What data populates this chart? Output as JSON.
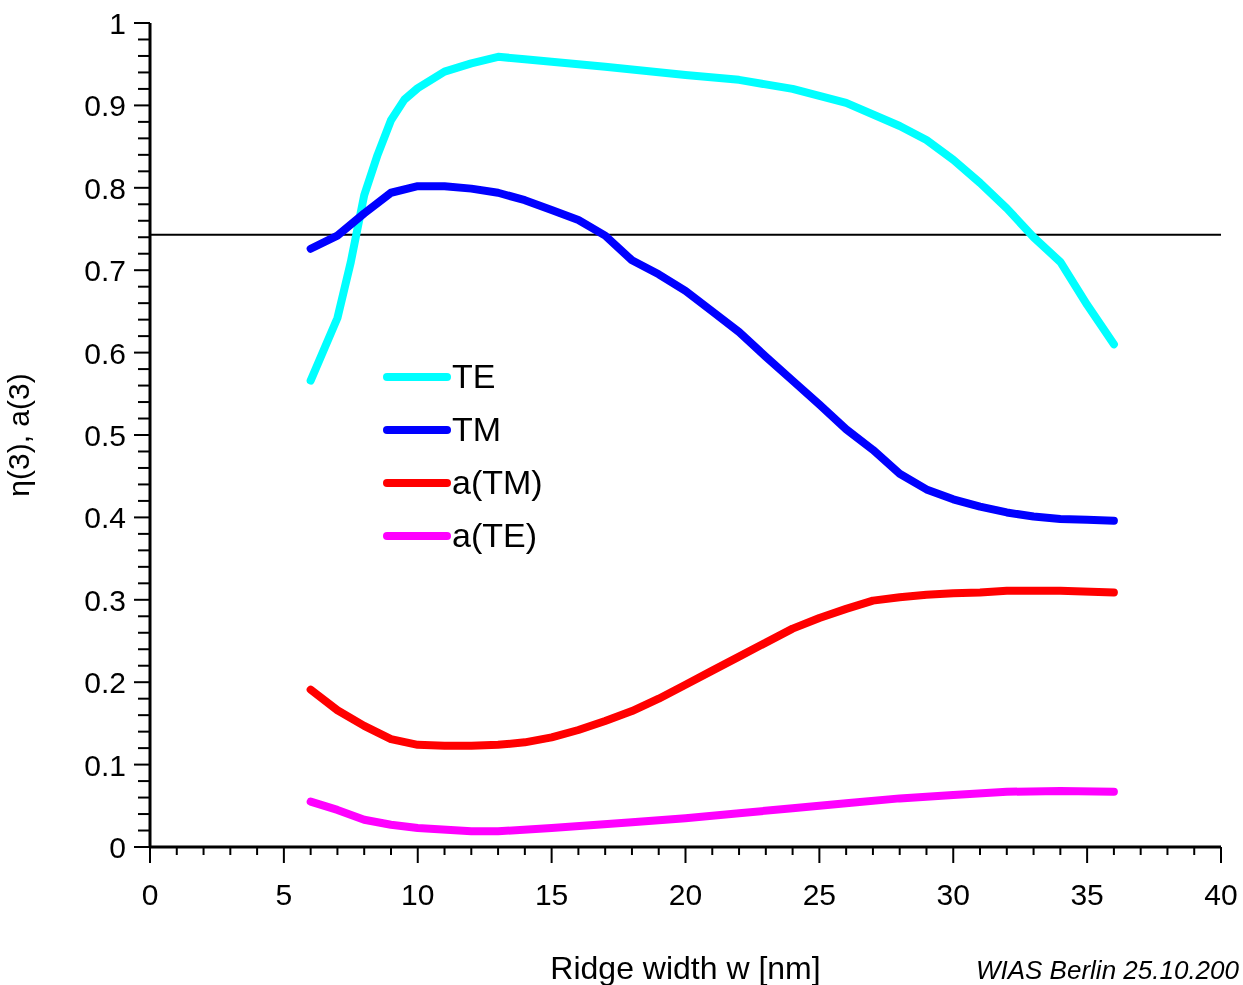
{
  "chart_data": {
    "type": "line",
    "xlabel": "Ridge width w [nm]",
    "ylabel": "η(3), a(3)",
    "annotations": [
      "WIAS Berlin 25.10.200"
    ],
    "xlim": [
      0,
      40
    ],
    "xticks": [
      0,
      {
        "value": 1,
        "label": null
      },
      {
        "value": 2,
        "label": null
      },
      {
        "value": 3,
        "label": null
      },
      {
        "value": 4,
        "label": null
      },
      5,
      {
        "value": 6,
        "label": null
      },
      {
        "value": 7,
        "label": null
      },
      {
        "value": 8,
        "label": null
      },
      {
        "value": 9,
        "label": null
      },
      10,
      {
        "value": 11,
        "label": null
      },
      {
        "value": 12,
        "label": null
      },
      {
        "value": 13,
        "label": null
      },
      {
        "value": 14,
        "label": null
      },
      15,
      {
        "value": 16,
        "label": null
      },
      {
        "value": 17,
        "label": null
      },
      {
        "value": 18,
        "label": null
      },
      {
        "value": 19,
        "label": null
      },
      20,
      {
        "value": 21,
        "label": null
      },
      {
        "value": 22,
        "label": null
      },
      {
        "value": 23,
        "label": null
      },
      {
        "value": 24,
        "label": null
      },
      25,
      {
        "value": 26,
        "label": null
      },
      {
        "value": 27,
        "label": null
      },
      {
        "value": 28,
        "label": null
      },
      {
        "value": 29,
        "label": null
      },
      30,
      {
        "value": 31,
        "label": null
      },
      {
        "value": 32,
        "label": null
      },
      {
        "value": 33,
        "label": null
      },
      {
        "value": 34,
        "label": null
      },
      35,
      {
        "value": 36,
        "label": null
      },
      {
        "value": 37,
        "label": null
      },
      {
        "value": 38,
        "label": null
      },
      {
        "value": 39,
        "label": null
      },
      40
    ],
    "ylim": [
      0,
      1
    ],
    "yticks": [
      0,
      {
        "value": 0.02,
        "label": null
      },
      {
        "value": 0.04,
        "label": null
      },
      {
        "value": 0.06,
        "label": null
      },
      {
        "value": 0.08,
        "label": null
      },
      0.1,
      {
        "value": 0.12,
        "label": null
      },
      {
        "value": 0.14,
        "label": null
      },
      {
        "value": 0.16,
        "label": null
      },
      {
        "value": 0.18,
        "label": null
      },
      0.2,
      {
        "value": 0.22,
        "label": null
      },
      {
        "value": 0.24,
        "label": null
      },
      {
        "value": 0.26,
        "label": null
      },
      {
        "value": 0.28,
        "label": null
      },
      0.3,
      {
        "value": 0.32,
        "label": null
      },
      {
        "value": 0.34,
        "label": null
      },
      {
        "value": 0.36,
        "label": null
      },
      {
        "value": 0.38,
        "label": null
      },
      0.4,
      {
        "value": 0.42,
        "label": null
      },
      {
        "value": 0.44,
        "label": null
      },
      {
        "value": 0.46,
        "label": null
      },
      {
        "value": 0.48,
        "label": null
      },
      0.5,
      {
        "value": 0.52,
        "label": null
      },
      {
        "value": 0.54,
        "label": null
      },
      {
        "value": 0.56,
        "label": null
      },
      {
        "value": 0.58,
        "label": null
      },
      0.6,
      {
        "value": 0.62,
        "label": null
      },
      {
        "value": 0.64,
        "label": null
      },
      {
        "value": 0.66,
        "label": null
      },
      {
        "value": 0.68,
        "label": null
      },
      0.7,
      {
        "value": 0.72,
        "label": null
      },
      {
        "value": 0.74,
        "label": null
      },
      {
        "value": 0.76,
        "label": null
      },
      {
        "value": 0.78,
        "label": null
      },
      0.8,
      {
        "value": 0.82,
        "label": null
      },
      {
        "value": 0.84,
        "label": null
      },
      {
        "value": 0.86,
        "label": null
      },
      {
        "value": 0.88,
        "label": null
      },
      0.9,
      {
        "value": 0.92,
        "label": null
      },
      {
        "value": 0.94,
        "label": null
      },
      {
        "value": 0.96,
        "label": null
      },
      {
        "value": 0.98,
        "label": null
      },
      1
    ],
    "legend": "left",
    "marker": "none",
    "line_style": "solid",
    "ref_lines": [
      {
        "axis": "y",
        "value": 0.743,
        "color": "#000000"
      }
    ],
    "series": [
      {
        "name": "TE",
        "color": "#00ffff",
        "x": [
          6,
          7,
          7.5,
          8,
          8.5,
          9,
          9.5,
          10,
          11,
          12,
          13,
          14,
          15,
          17,
          20,
          22,
          24,
          26,
          28,
          29,
          30,
          31,
          32,
          33,
          34,
          35,
          36
        ],
        "values": [
          0.566,
          0.642,
          0.71,
          0.791,
          0.84,
          0.882,
          0.907,
          0.921,
          0.941,
          0.951,
          0.959,
          0.956,
          0.953,
          0.947,
          0.937,
          0.931,
          0.92,
          0.903,
          0.875,
          0.858,
          0.834,
          0.806,
          0.775,
          0.74,
          0.71,
          0.658,
          0.61
        ]
      },
      {
        "name": "TM",
        "color": "#0000ff",
        "x": [
          6,
          7,
          8,
          9,
          10,
          11,
          12,
          13,
          14,
          15,
          16,
          17,
          18,
          19,
          20,
          21,
          22,
          23,
          24,
          25,
          26,
          27,
          28,
          29,
          30,
          31,
          32,
          33,
          34,
          35,
          36
        ],
        "values": [
          0.726,
          0.742,
          0.769,
          0.794,
          0.802,
          0.802,
          0.799,
          0.794,
          0.785,
          0.773,
          0.761,
          0.742,
          0.712,
          0.695,
          0.675,
          0.65,
          0.625,
          0.595,
          0.566,
          0.537,
          0.507,
          0.482,
          0.453,
          0.434,
          0.422,
          0.413,
          0.406,
          0.401,
          0.398,
          0.397,
          0.396
        ]
      },
      {
        "name": "a(TM)",
        "color": "#ff0000",
        "x": [
          6,
          7,
          8,
          9,
          10,
          11,
          12,
          13,
          14,
          15,
          16,
          17,
          18,
          19,
          20,
          21,
          22,
          23,
          24,
          25,
          26,
          27,
          28,
          29,
          30,
          31,
          32,
          34,
          36
        ],
        "values": [
          0.191,
          0.166,
          0.147,
          0.131,
          0.124,
          0.123,
          0.123,
          0.124,
          0.127,
          0.133,
          0.142,
          0.153,
          0.165,
          0.18,
          0.197,
          0.214,
          0.231,
          0.248,
          0.265,
          0.278,
          0.289,
          0.299,
          0.303,
          0.306,
          0.308,
          0.309,
          0.311,
          0.311,
          0.309
        ]
      },
      {
        "name": "a(TE)",
        "color": "#ff00ff",
        "x": [
          6,
          7,
          8,
          9,
          10,
          12,
          13,
          15,
          18,
          20,
          22,
          24,
          26,
          28,
          30,
          32,
          34,
          36
        ],
        "values": [
          0.055,
          0.045,
          0.033,
          0.027,
          0.023,
          0.019,
          0.019,
          0.023,
          0.03,
          0.035,
          0.041,
          0.047,
          0.053,
          0.059,
          0.063,
          0.067,
          0.068,
          0.067
        ]
      }
    ]
  }
}
